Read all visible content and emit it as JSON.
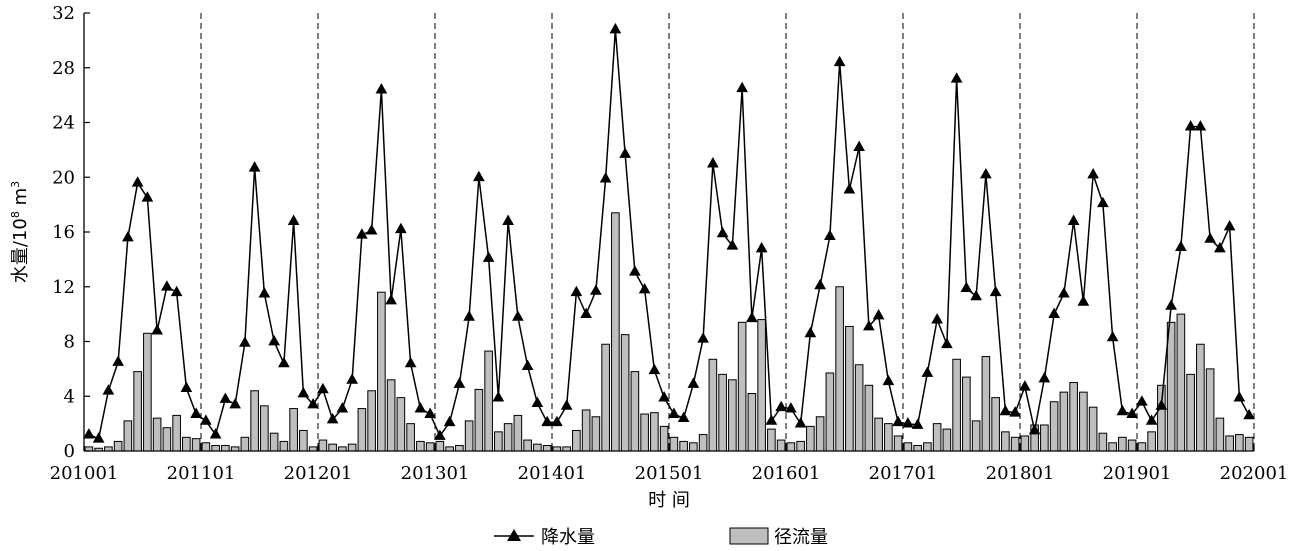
{
  "chart_data": {
    "type": "bar+line",
    "title": "",
    "xlabel": "时 间",
    "ylabel_main": "水量/10",
    "ylabel_sup": "8",
    "ylabel_unit": " m",
    "ylabel_unit_sup": "3",
    "ylim": [
      0,
      32
    ],
    "yticks": [
      0,
      4,
      8,
      12,
      16,
      20,
      24,
      28,
      32
    ],
    "xtick_labels": [
      "201001",
      "201101",
      "201201",
      "201301",
      "201401",
      "201501",
      "201601",
      "201701",
      "201801",
      "201901",
      "202001"
    ],
    "year_separators": true,
    "legend": {
      "placement": "bottom"
    },
    "colors": {
      "bar_fill": "#bfbfbf",
      "bar_stroke": "#000000",
      "line": "#000000"
    },
    "series": [
      {
        "name": "降水量",
        "type": "line",
        "marker": "triangle",
        "values": [
          1.2,
          0.9,
          4.4,
          6.5,
          15.6,
          19.6,
          18.5,
          8.8,
          12.0,
          11.6,
          4.6,
          2.7,
          2.2,
          1.2,
          3.8,
          3.4,
          7.9,
          20.7,
          11.5,
          8.0,
          6.4,
          16.8,
          4.2,
          3.4,
          4.5,
          2.3,
          3.1,
          5.2,
          15.8,
          16.1,
          26.4,
          11.0,
          16.2,
          6.4,
          3.1,
          2.7,
          1.1,
          2.1,
          4.9,
          9.8,
          20.0,
          14.1,
          3.9,
          16.8,
          9.8,
          6.2,
          3.5,
          2.1,
          2.1,
          3.3,
          11.6,
          10.0,
          11.7,
          19.9,
          30.8,
          21.7,
          13.1,
          11.8,
          5.9,
          3.9,
          2.7,
          2.4,
          4.9,
          8.2,
          21.0,
          15.9,
          15.0,
          26.5,
          9.7,
          14.8,
          2.2,
          3.2,
          3.1,
          2.0,
          8.6,
          12.1,
          15.7,
          28.4,
          19.1,
          22.2,
          9.1,
          9.9,
          5.1,
          2.1,
          2.0,
          1.9,
          5.7,
          9.6,
          7.8,
          27.2,
          11.9,
          11.3,
          20.2,
          11.6,
          2.9,
          2.8,
          4.7,
          1.5,
          5.3,
          10.0,
          11.5,
          16.8,
          10.9,
          20.2,
          18.1,
          8.3,
          2.9,
          2.7,
          3.6,
          2.2,
          3.3,
          10.6,
          14.9,
          23.7,
          23.7,
          15.5,
          14.8,
          16.4,
          3.9,
          2.6
        ]
      },
      {
        "name": "径流量",
        "type": "bar",
        "values": [
          0.3,
          0.2,
          0.3,
          0.7,
          2.2,
          5.8,
          8.6,
          2.4,
          1.7,
          2.6,
          1.0,
          0.9,
          0.6,
          0.4,
          0.4,
          0.3,
          1.0,
          4.4,
          3.3,
          1.3,
          0.7,
          3.1,
          1.5,
          0.3,
          0.8,
          0.5,
          0.3,
          0.5,
          3.1,
          4.4,
          11.6,
          5.2,
          3.9,
          2.0,
          0.7,
          0.6,
          0.7,
          0.3,
          0.4,
          2.2,
          4.5,
          7.3,
          1.4,
          2.0,
          2.6,
          0.8,
          0.5,
          0.4,
          0.3,
          0.3,
          1.5,
          3.0,
          2.5,
          7.8,
          17.4,
          8.5,
          5.8,
          2.7,
          2.8,
          1.8,
          1.0,
          0.7,
          0.6,
          1.2,
          6.7,
          5.6,
          5.2,
          9.4,
          4.2,
          9.6,
          1.6,
          0.8,
          0.6,
          0.7,
          1.8,
          2.5,
          5.7,
          12.0,
          9.1,
          6.3,
          4.8,
          2.4,
          2.0,
          1.1,
          0.6,
          0.4,
          0.6,
          2.0,
          1.6,
          6.7,
          5.4,
          2.2,
          6.9,
          3.9,
          1.4,
          1.0,
          1.1,
          1.9,
          1.9,
          3.6,
          4.3,
          5.0,
          4.3,
          3.2,
          1.3,
          0.6,
          1.0,
          0.8,
          0.6,
          1.4,
          4.8,
          9.4,
          10.0,
          5.6,
          7.8,
          6.0,
          2.4,
          1.1,
          1.2,
          1.0
        ]
      }
    ]
  }
}
